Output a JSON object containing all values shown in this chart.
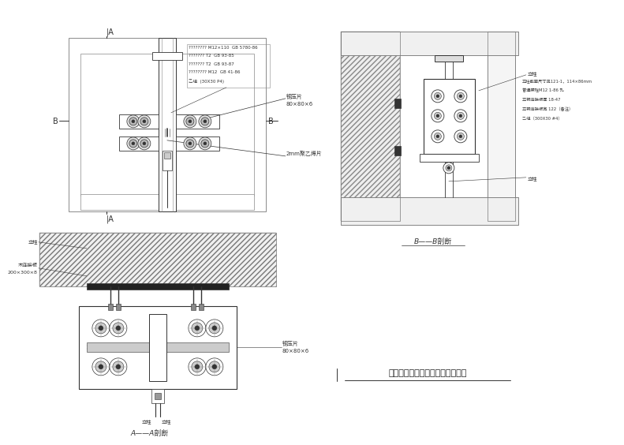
{
  "bg_color": "#ffffff",
  "line_color": "#555555",
  "dark_color": "#333333",
  "title": "明框玻璃幕墙立柱与主体连接节点",
  "label_AA": "A——A剖断",
  "label_BB": "B——B剖断",
  "ann_steel_plate": "钢压片\n80×80×6",
  "ann_poly": "2mm聚乙烯片",
  "ann_wood": "木连接板\n200×300×8",
  "ann_col": "立柱",
  "spec1": "???????? M12×110  GB 5780-86",
  "spec2": "??????? T2  GB 93-85",
  "spec3": "??????? T2  GB 93-87",
  "spec4": "???????? M12  GB 41-86",
  "spec5": "乙组  (30X30 P4)",
  "bb_s1": "立柱截面尺寸见121-1，114×86mm",
  "bb_s2": "普通螺栓M12 1-86 孔",
  "bb_s3": "立钢连接板厚 18-47",
  "bb_s4": "立钢连接板宽 122（备注）",
  "bb_s5": "乙组（300X30 #4）"
}
